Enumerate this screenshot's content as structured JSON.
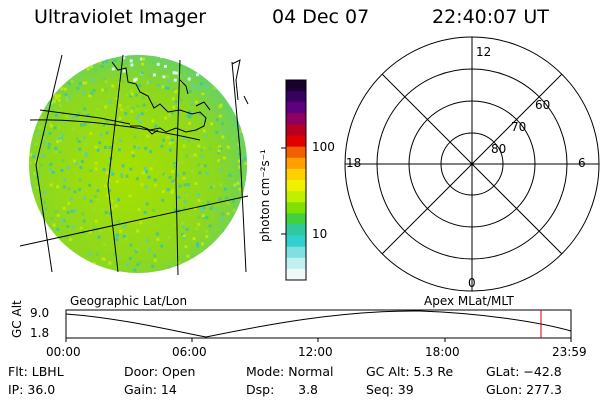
{
  "header": {
    "instrument": "Ultraviolet Imager",
    "date": "04 Dec 07",
    "time": "22:40:07 UT"
  },
  "colorbar": {
    "label": "photon cm⁻²s⁻¹",
    "tick_100": "100",
    "tick_10": "10",
    "colors": [
      "#1a0030",
      "#3a0060",
      "#600080",
      "#900060",
      "#b80020",
      "#e00000",
      "#f06000",
      "#ffa000",
      "#ffd000",
      "#f0f000",
      "#c0f000",
      "#80e000",
      "#40d040",
      "#30c8a0",
      "#30d0d0",
      "#80e0e0",
      "#c0f0f0",
      "#f0f8f8"
    ]
  },
  "polar_plot": {
    "labels": {
      "top": "12",
      "bottom": "0",
      "left": "18",
      "right": "6"
    },
    "ring_labels": [
      "60",
      "70",
      "80"
    ]
  },
  "coordinate_labels": {
    "left": "Geographic Lat/Lon",
    "right": "Apex MLat/MLT"
  },
  "altitude_plot": {
    "axis_label": "GC Alt",
    "y_ticks": [
      "9.0",
      "1.8"
    ],
    "x_ticks": [
      "00:00",
      "06:00",
      "12:00",
      "18:00",
      "23:59"
    ]
  },
  "info": {
    "filter": "Flt: LBHL",
    "ip": "IP: 36.0",
    "door": "Door: Open",
    "gain": "Gain: 14",
    "mode": "Mode: Normal",
    "dsp": "Dsp:      3.8",
    "gc_alt": "GC Alt: 5.3 Re",
    "seq": "Seq: 39",
    "glat": "GLat: −42.8",
    "glon": "GLon: 277.3"
  },
  "colors": {
    "disk_base": "#7ed43c",
    "marker_red": "#d00000"
  }
}
